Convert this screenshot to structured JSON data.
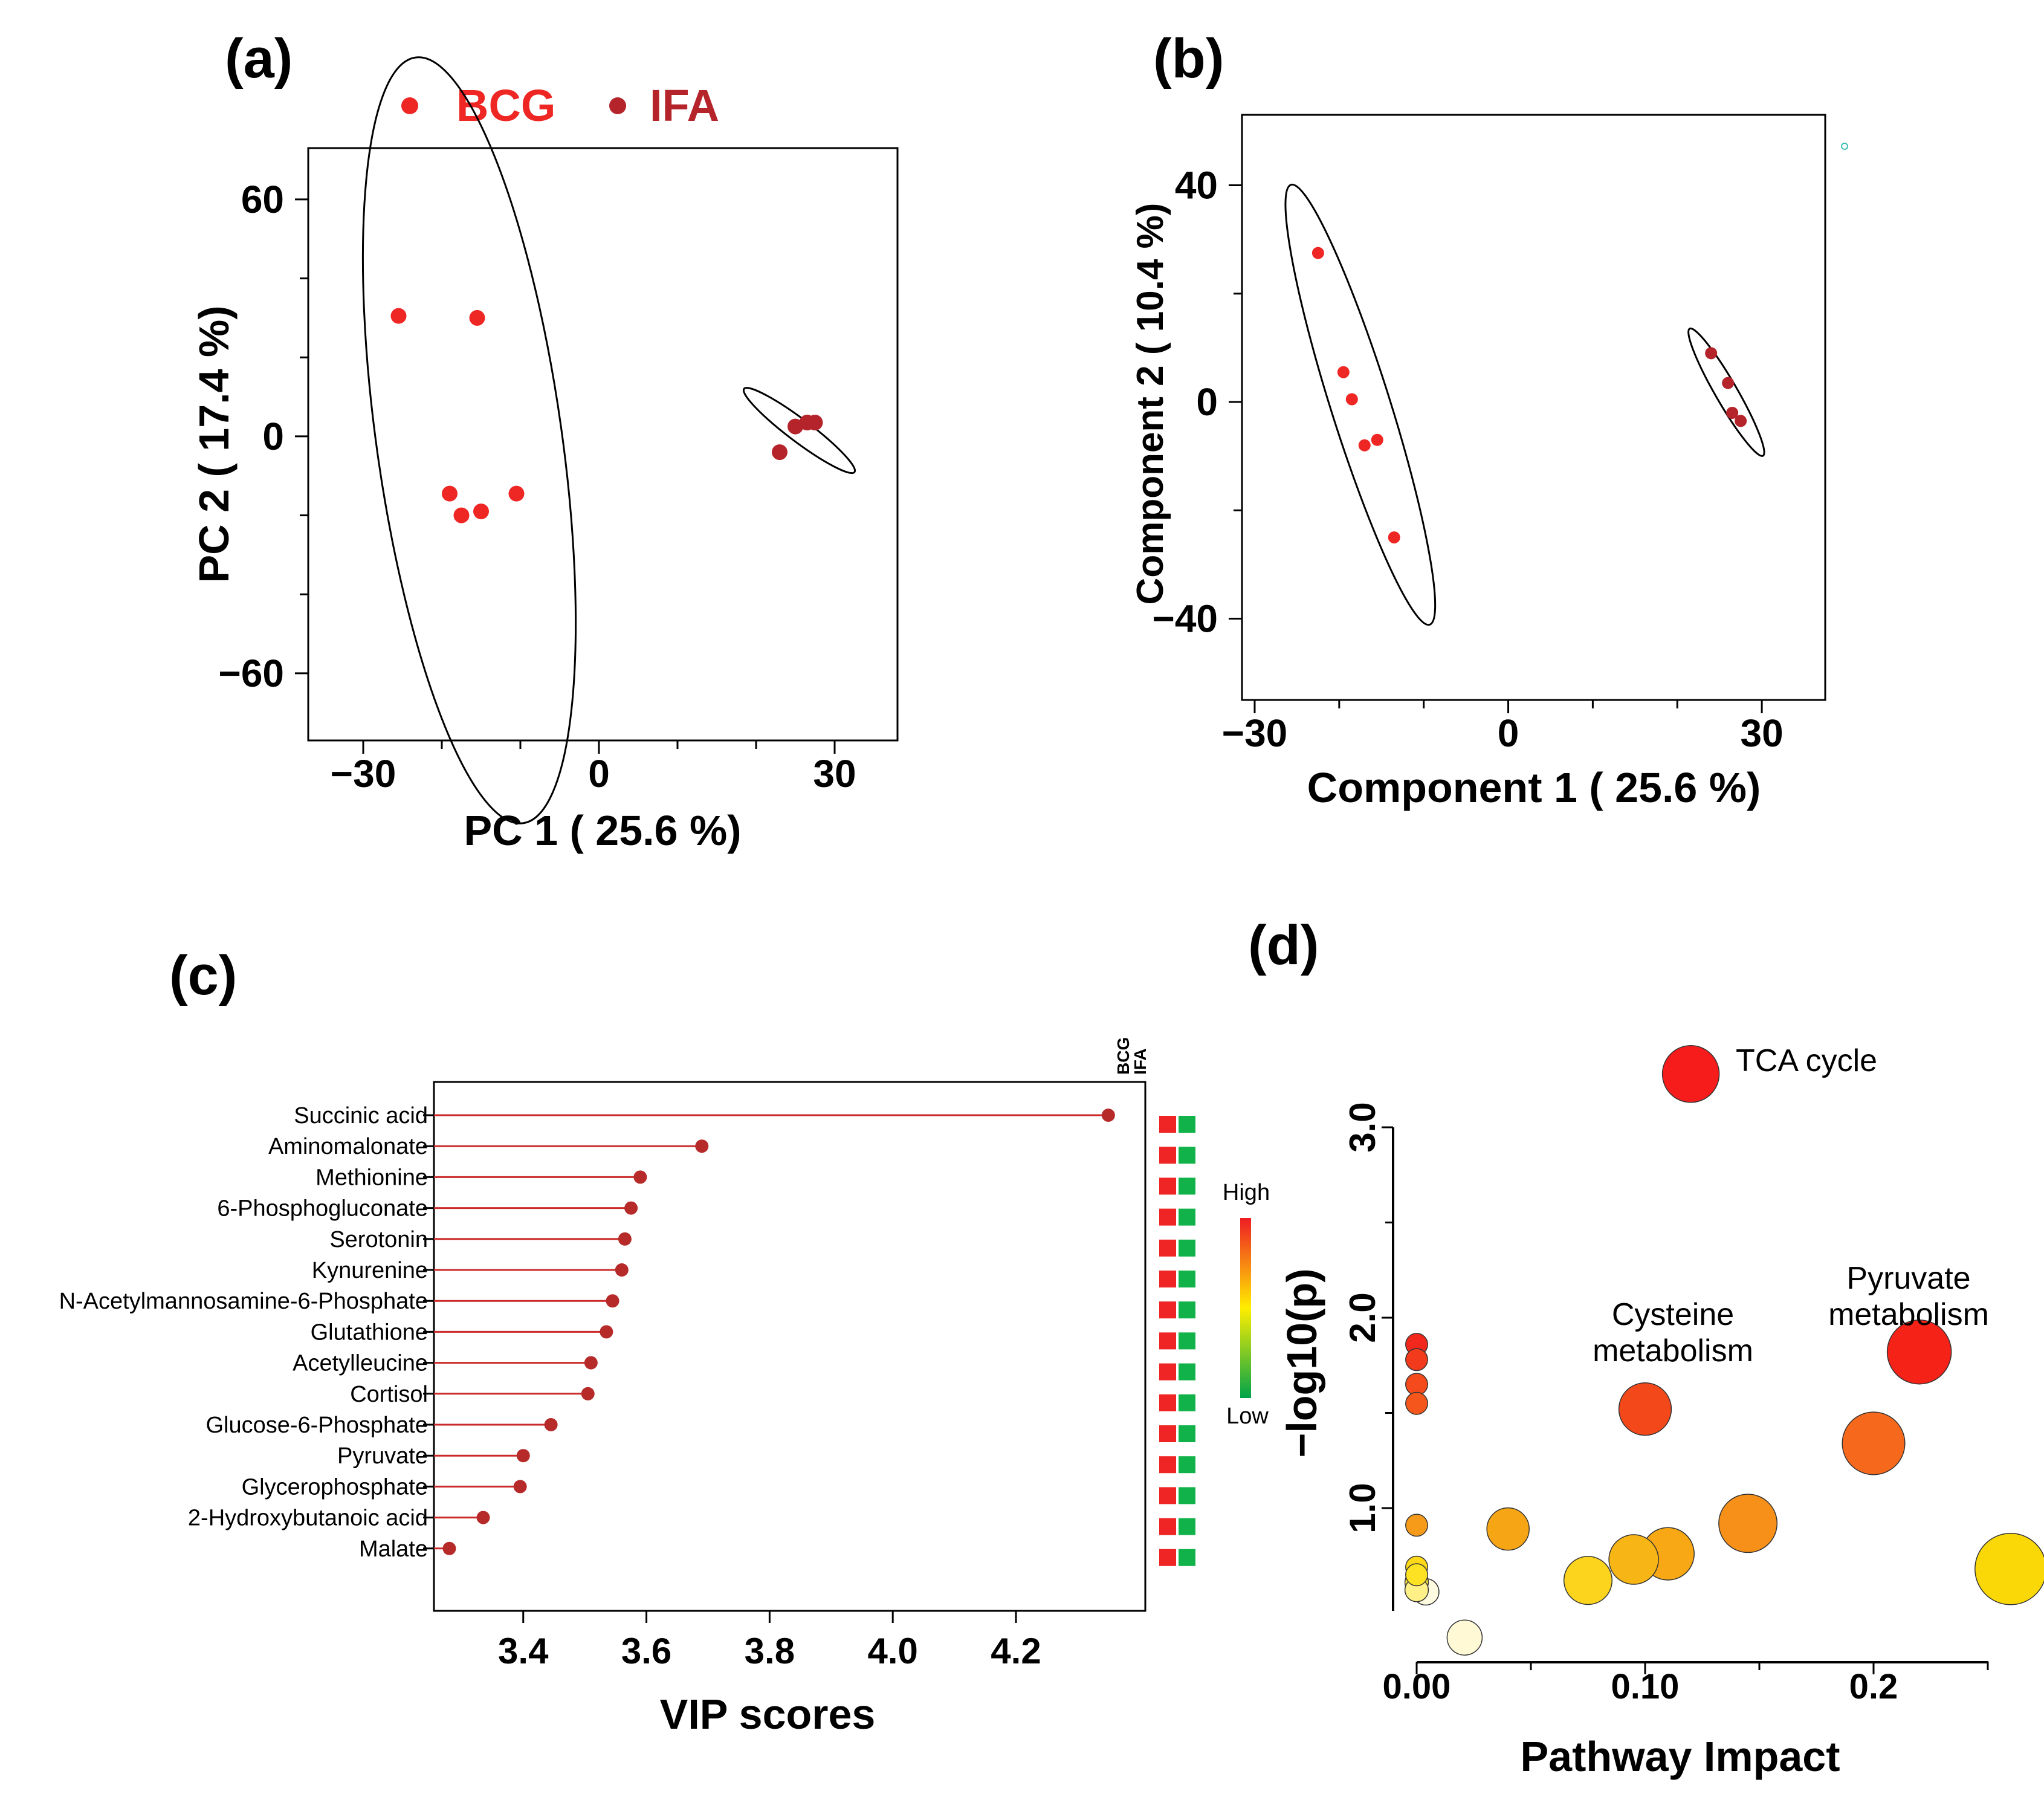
{
  "colors": {
    "bcg": "#ee2624",
    "ifa": "#b5232b",
    "lollipop": "#b72a2a",
    "stem": "#cc2a2a",
    "box_red": "#ee2524",
    "box_green": "#12b24a"
  },
  "chart_data": [
    {
      "id": "a",
      "panel_label": "(a)",
      "type": "scatter",
      "title": "",
      "xlabel": "PC 1 ( 25.6 %)",
      "ylabel": "PC 2 ( 17.4 %)",
      "xlim": [
        -37,
        38
      ],
      "ylim": [
        -77,
        73
      ],
      "xticks": [
        -30,
        0,
        30
      ],
      "xminor": [
        -20,
        -10,
        10,
        20
      ],
      "xtick_labels": [
        "−30",
        "0",
        "30"
      ],
      "yticks": [
        60,
        0,
        -60
      ],
      "yminor": [
        40,
        20,
        -20,
        -40
      ],
      "ytick_labels": [
        "60",
        "0",
        "−60"
      ],
      "legend": {
        "position": "top",
        "entries": [
          "BCG",
          "IFA"
        ]
      },
      "series": [
        {
          "name": "BCG",
          "points": [
            [
              -25.5,
              30.5
            ],
            [
              -15.5,
              30
            ],
            [
              -19,
              -14.5
            ],
            [
              -17.5,
              -20
            ],
            [
              -15,
              -19
            ],
            [
              -10.5,
              -14.5
            ]
          ]
        },
        {
          "name": "IFA",
          "points": [
            [
              23,
              -4
            ],
            [
              25,
              2.5
            ],
            [
              26.5,
              3.5
            ],
            [
              27.5,
              3.5
            ]
          ]
        }
      ],
      "ellipses": [
        {
          "cx": -16.5,
          "cy": -1,
          "rx": 11.8,
          "ry": 61.5,
          "angle": -8
        },
        {
          "cx": 25.5,
          "cy": 1.5,
          "rx": 8.8,
          "ry": 1.8,
          "angle": 37
        }
      ]
    },
    {
      "id": "b",
      "panel_label": "(b)",
      "type": "scatter",
      "title": "",
      "xlabel": "Component 1 ( 25.6 %)",
      "ylabel": "Component 2 ( 10.4 %)",
      "xlim": [
        -31.5,
        37.5
      ],
      "ylim": [
        -55,
        53
      ],
      "xticks": [
        -30,
        0,
        30
      ],
      "xminor": [
        -20,
        -10,
        10,
        20
      ],
      "xtick_labels": [
        "−30",
        "0",
        "30"
      ],
      "yticks": [
        40,
        0,
        -40
      ],
      "yminor": [
        20,
        -20
      ],
      "ytick_labels": [
        "40",
        "0",
        "−40"
      ],
      "series": [
        {
          "name": "BCG",
          "points": [
            [
              -22.5,
              27.5
            ],
            [
              -19.5,
              5.5
            ],
            [
              -18.5,
              0.5
            ],
            [
              -17,
              -8
            ],
            [
              -15.5,
              -7
            ],
            [
              -13.5,
              -25
            ]
          ]
        },
        {
          "name": "IFA",
          "points": [
            [
              24,
              9
            ],
            [
              26,
              3.5
            ],
            [
              26.5,
              -2
            ],
            [
              27.5,
              -3.5
            ]
          ]
        }
      ],
      "ellipses": [
        {
          "cx": -17.5,
          "cy": -0.5,
          "rx": 3.5,
          "ry": 44,
          "angle": -17.5
        },
        {
          "cx": 25.8,
          "cy": 1.8,
          "rx": 1.3,
          "ry": 14,
          "angle": -30
        }
      ]
    },
    {
      "id": "c",
      "panel_label": "(c)",
      "type": "bar",
      "subtype": "lollipop",
      "title": "",
      "xlabel": "VIP scores",
      "ylabel": "",
      "xlim": [
        3.255,
        4.41
      ],
      "xticks": [
        3.4,
        3.6,
        3.8,
        4.0,
        4.2
      ],
      "xtick_labels": [
        "3.4",
        "3.6",
        "3.8",
        "4.0",
        "4.2"
      ],
      "categories": [
        "Succinic acid",
        "Aminomalonate",
        "Methionine",
        "6-Phosphogluconate",
        "Serotonin",
        "Kynurenine",
        "N-Acetylmannosamine-6-Phosphate",
        "Glutathione",
        "Acetylleucine",
        "Cortisol",
        "Glucose-6-Phosphate",
        "Pyruvate",
        "Glycerophosphate",
        "2-Hydroxybutanoic acid",
        "Malate"
      ],
      "values": [
        4.35,
        3.69,
        3.59,
        3.575,
        3.565,
        3.56,
        3.545,
        3.535,
        3.51,
        3.505,
        3.445,
        3.4,
        3.395,
        3.335,
        3.28
      ],
      "group_columns": [
        "BCG",
        "IFA"
      ],
      "group_levels": {
        "BCG": [
          "High",
          "High",
          "High",
          "High",
          "High",
          "High",
          "High",
          "High",
          "High",
          "High",
          "High",
          "High",
          "High",
          "High",
          "High"
        ],
        "IFA": [
          "Low",
          "Low",
          "Low",
          "Low",
          "Low",
          "Low",
          "Low",
          "Low",
          "Low",
          "Low",
          "Low",
          "Low",
          "Low",
          "Low",
          "Low"
        ]
      },
      "colorbar": {
        "high_label": "High",
        "low_label": "Low"
      }
    },
    {
      "id": "d",
      "panel_label": "(d)",
      "type": "scatter",
      "subtype": "bubble",
      "title": "",
      "xlabel": "Pathway Impact",
      "ylabel": "−log10(p)",
      "xlim": [
        0,
        0.26
      ],
      "ylim": [
        0.52,
        3.0
      ],
      "xticks": [
        0.0,
        0.1,
        0.2
      ],
      "xminor": [
        0.05,
        0.15,
        0.25
      ],
      "xtick_labels": [
        "0.00",
        "0.10",
        "0.2"
      ],
      "yticks": [
        1.0,
        2.0,
        3.0
      ],
      "yminor": [
        1.5,
        2.5
      ],
      "ytick_labels": [
        "1.0",
        "2.0",
        "3.0"
      ],
      "points": [
        {
          "x": 0.12,
          "y": 3.28,
          "size": 3.5,
          "color": "#f71c1c",
          "label": "TCA cycle"
        },
        {
          "x": 0.22,
          "y": 1.82,
          "size": 4.0,
          "color": "#f52218",
          "label": "Pyruvate metabolism"
        },
        {
          "x": 0.1,
          "y": 1.52,
          "size": 3.2,
          "color": "#f2481a",
          "label": "Cysteine metabolism"
        },
        {
          "x": 0.2,
          "y": 1.34,
          "size": 3.9,
          "color": "#f6691c",
          "label": ""
        },
        {
          "x": 0.145,
          "y": 0.92,
          "size": 3.6,
          "color": "#f69018",
          "label": ""
        },
        {
          "x": 0.11,
          "y": 0.76,
          "size": 3.2,
          "color": "#f8a814",
          "label": ""
        },
        {
          "x": 0.095,
          "y": 0.73,
          "size": 3.0,
          "color": "#f8b516",
          "label": ""
        },
        {
          "x": 0.075,
          "y": 0.62,
          "size": 2.9,
          "color": "#fcd41e",
          "label": ""
        },
        {
          "x": 0.04,
          "y": 0.89,
          "size": 2.5,
          "color": "#f6a514",
          "label": ""
        },
        {
          "x": 0.26,
          "y": 0.68,
          "size": 4.5,
          "color": "#fad808",
          "label": ""
        },
        {
          "x": 0.021,
          "y": 0.32,
          "size": 2.0,
          "color": "#fff9d6",
          "label": ""
        },
        {
          "x": 0.0,
          "y": 1.86,
          "size": 1.1,
          "color": "#f2281c",
          "label": ""
        },
        {
          "x": 0.0,
          "y": 1.78,
          "size": 1.1,
          "color": "#f23a1c",
          "label": ""
        },
        {
          "x": 0.0,
          "y": 1.65,
          "size": 1.1,
          "color": "#f44a1c",
          "label": ""
        },
        {
          "x": 0.0,
          "y": 1.55,
          "size": 1.1,
          "color": "#f5561c",
          "label": ""
        },
        {
          "x": 0.0,
          "y": 0.91,
          "size": 1.1,
          "color": "#f69a1a",
          "label": ""
        },
        {
          "x": 0.0,
          "y": 0.69,
          "size": 1.1,
          "color": "#fcd818",
          "label": ""
        },
        {
          "x": 0.0,
          "y": 0.65,
          "size": 1.1,
          "color": "#fde224",
          "label": ""
        },
        {
          "x": 0.0,
          "y": 0.61,
          "size": 1.2,
          "color": "#fde83c",
          "label": ""
        },
        {
          "x": 0.0,
          "y": 0.57,
          "size": 1.2,
          "color": "#fff088",
          "label": ""
        },
        {
          "x": 0.004,
          "y": 0.56,
          "size": 1.4,
          "color": "#fffbe0",
          "label": ""
        }
      ],
      "annotations": [
        {
          "text": "TCA cycle",
          "lines": [
            "TCA cycle"
          ]
        },
        {
          "text": "Cysteine metabolism",
          "lines": [
            "Cysteine",
            "metabolism"
          ]
        },
        {
          "text": "Pyruvate metabolism",
          "lines": [
            "Pyruvate",
            "metabolism"
          ]
        }
      ]
    }
  ]
}
